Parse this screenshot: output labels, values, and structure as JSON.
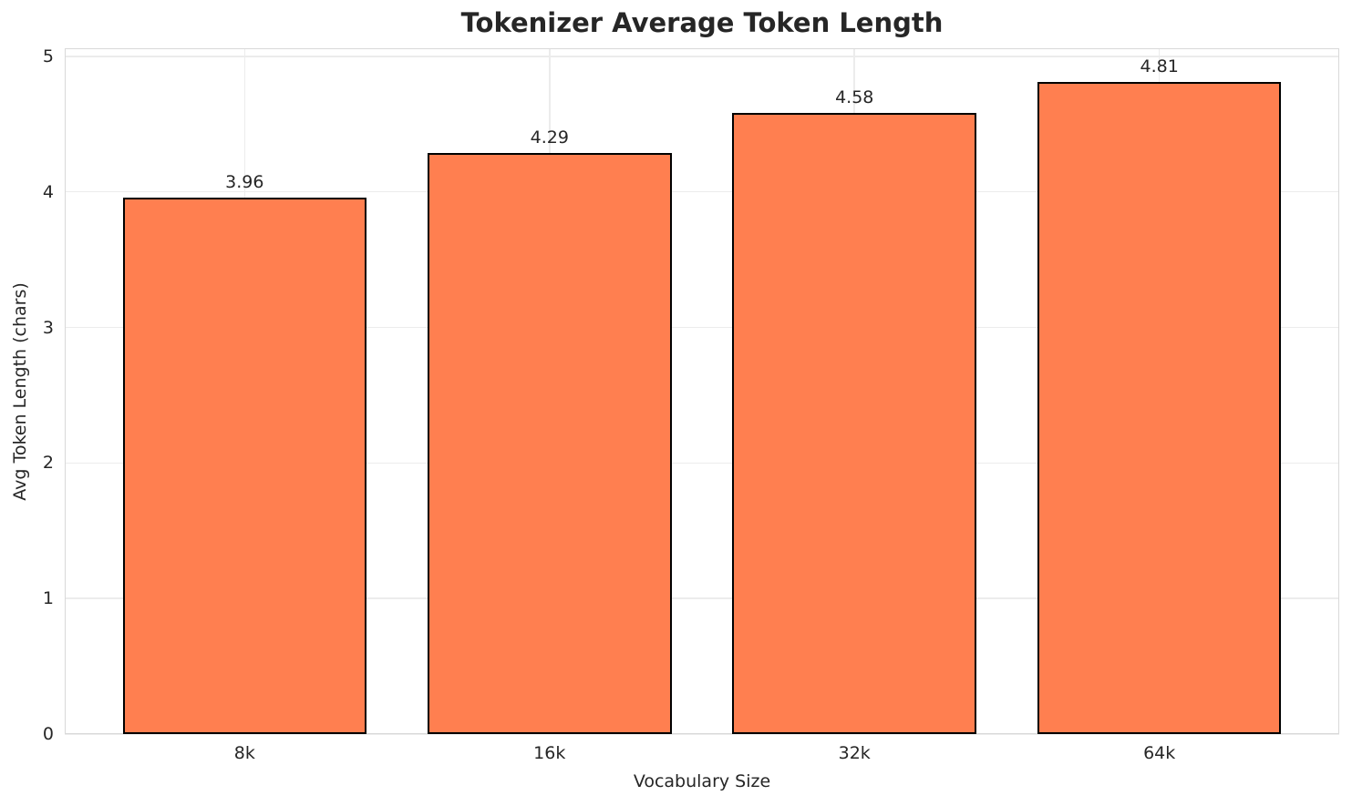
{
  "chart_data": {
    "type": "bar",
    "title": "Tokenizer Average Token Length",
    "xlabel": "Vocabulary Size",
    "ylabel": "Avg Token Length (chars)",
    "categories": [
      "8k",
      "16k",
      "32k",
      "64k"
    ],
    "values": [
      3.96,
      4.29,
      4.58,
      4.81
    ],
    "value_labels": [
      "3.96",
      "4.29",
      "4.58",
      "4.81"
    ],
    "yticks": [
      0,
      1,
      2,
      3,
      4,
      5
    ],
    "ytick_labels": [
      "0",
      "1",
      "2",
      "3",
      "4",
      "5"
    ],
    "ylim": [
      0,
      5.06
    ],
    "xlim": [
      -0.59,
      3.59
    ],
    "bar_half_width": 0.4,
    "grid": "on",
    "legend_position": "none",
    "colors": {
      "bar_fill": "#FF7F50",
      "bar_edge": "#000000",
      "grid": "#ECECEC",
      "spine": "#D9D9D9",
      "text": "#262626",
      "background": "#FFFFFF"
    }
  }
}
